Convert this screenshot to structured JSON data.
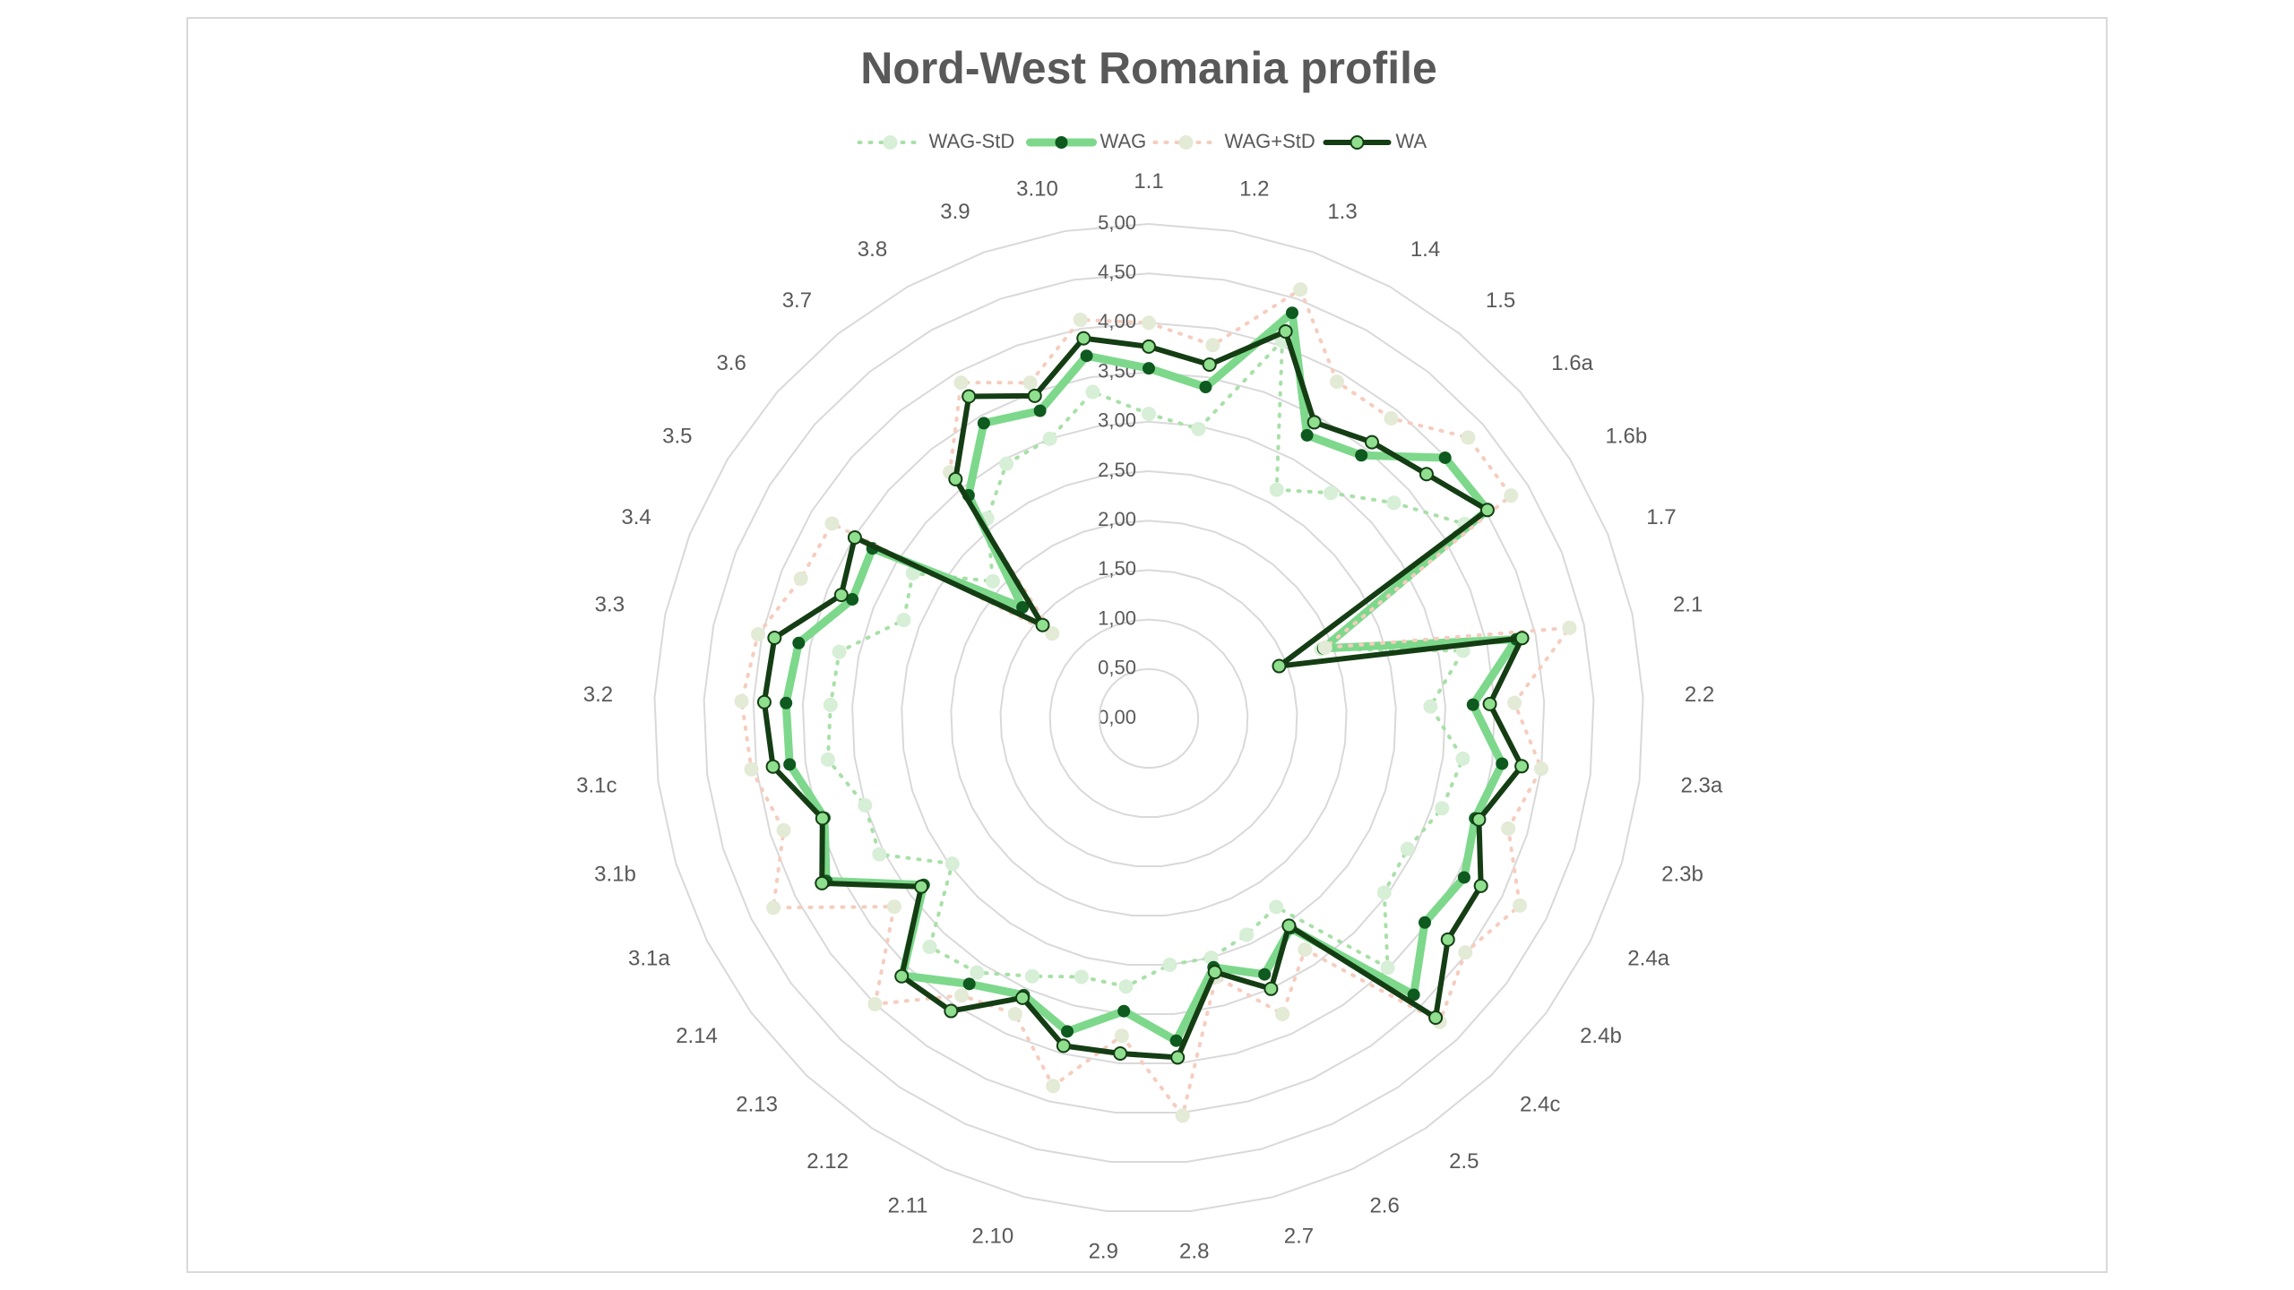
{
  "chart_data": {
    "type": "radar",
    "title": "Nord-West Romania profile",
    "categories": [
      "1.1",
      "1.2",
      "1.3",
      "1.4",
      "1.5",
      "1.6a",
      "1.6b",
      "1.7",
      "2.1",
      "2.2",
      "2.3a",
      "2.3b",
      "2.4a",
      "2.4b",
      "2.4c",
      "2.5",
      "2.6",
      "2.7",
      "2.8",
      "2.9",
      "2.10",
      "2.11",
      "2.12",
      "2.13",
      "2.14",
      "3.1a",
      "3.1b",
      "3.1c",
      "3.2",
      "3.3",
      "3.4",
      "3.5",
      "3.6",
      "3.7",
      "3.8",
      "3.9",
      "3.10"
    ],
    "series": [
      {
        "name": "WAG-StD",
        "color": "#a8e0a8",
        "line_style": "dotted",
        "values": [
          3.08,
          2.97,
          4.05,
          2.65,
          2.93,
          3.3,
          3.75,
          1.88,
          3.25,
          2.85,
          3.2,
          3.1,
          2.93,
          2.96,
          3.49,
          2.3,
          2.4,
          2.5,
          2.5,
          2.72,
          2.7,
          2.86,
          3.1,
          3.2,
          2.47,
          3.05,
          3.0,
          3.27,
          3.22,
          3.2,
          2.67,
          2.8,
          2.1,
          2.6,
          2.95,
          3.0,
          3.35
        ]
      },
      {
        "name": "WAG",
        "color": "#7dd88b",
        "line_style": "solid",
        "values": [
          3.54,
          3.4,
          4.35,
          3.28,
          3.42,
          3.99,
          4.02,
          1.9,
          3.8,
          3.28,
          3.6,
          3.45,
          3.57,
          3.47,
          3.87,
          2.56,
          2.84,
          2.6,
          3.27,
          2.97,
          3.27,
          3.07,
          3.24,
          3.6,
          2.83,
          3.65,
          3.43,
          3.66,
          3.67,
          3.62,
          3.23,
          3.28,
          1.7,
          2.9,
          3.42,
          3.3,
          3.72
        ]
      },
      {
        "name": "WAG+StD",
        "color": "#f5cdbf",
        "line_style": "dotted",
        "values": [
          4.0,
          3.83,
          4.6,
          3.9,
          3.9,
          4.3,
          4.3,
          1.92,
          4.35,
          3.7,
          4.0,
          3.8,
          4.2,
          3.98,
          4.25,
          2.82,
          3.28,
          2.7,
          4.03,
          3.22,
          3.84,
          3.28,
          3.38,
          4.0,
          3.2,
          4.25,
          3.86,
          4.05,
          4.12,
          4.04,
          3.79,
          3.76,
          1.3,
          3.2,
          3.89,
          3.6,
          4.09
        ]
      },
      {
        "name": "WA",
        "color": "#143d14",
        "line_style": "solid",
        "values": [
          3.76,
          3.63,
          4.15,
          3.43,
          3.59,
          3.74,
          4.02,
          1.42,
          3.86,
          3.45,
          3.8,
          3.49,
          3.76,
          3.76,
          4.19,
          2.53,
          3.0,
          2.65,
          3.44,
          3.4,
          3.42,
          3.1,
          3.57,
          3.61,
          2.86,
          3.7,
          3.45,
          3.83,
          3.89,
          3.87,
          3.35,
          3.49,
          1.43,
          3.11,
          3.73,
          3.46,
          3.9
        ]
      }
    ],
    "ylim": [
      0,
      5
    ],
    "yticks": [
      {
        "value": 0,
        "label": "0,00"
      },
      {
        "value": 0.5,
        "label": "0,50"
      },
      {
        "value": 1,
        "label": "1,00"
      },
      {
        "value": 1.5,
        "label": "1,50"
      },
      {
        "value": 2,
        "label": "2,00"
      },
      {
        "value": 2.5,
        "label": "2,50"
      },
      {
        "value": 3,
        "label": "3,00"
      },
      {
        "value": 3.5,
        "label": "3,50"
      },
      {
        "value": 4,
        "label": "4,00"
      },
      {
        "value": 4.5,
        "label": "4,50"
      },
      {
        "value": 5,
        "label": "5,00"
      }
    ],
    "grid": true,
    "legend": "top"
  }
}
